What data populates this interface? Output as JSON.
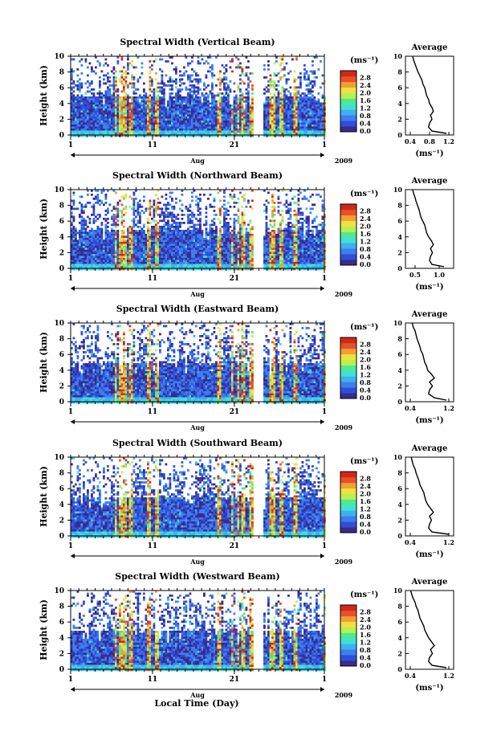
{
  "figure": {
    "xlabel": "Local Time (Day)",
    "month_label": "Aug",
    "year_label": "2009"
  },
  "colorbar": {
    "unit_label": "(ms⁻¹)",
    "tick_labels": [
      "0.0",
      "0.4",
      "0.8",
      "1.2",
      "1.6",
      "2.0",
      "2.4",
      "2.8"
    ],
    "colors": [
      "#3a2a8c",
      "#2f4fd8",
      "#3d7ef0",
      "#3fb0f0",
      "#40e0d8",
      "#50e890",
      "#b8f050",
      "#f0e040",
      "#f0a030",
      "#e85028",
      "#d02818"
    ]
  },
  "chart_data": [
    {
      "type": "heatmap",
      "title": "Spectral Width (Vertical Beam)",
      "ylabel": "Height (km)",
      "xlabel": "",
      "x_tick_labels": [
        "1",
        "11",
        "21",
        "1"
      ],
      "x_range_days": [
        1,
        32
      ],
      "ylim": [
        0,
        10
      ],
      "y_ticks": [
        0,
        2,
        4,
        6,
        8,
        10
      ],
      "data_gap_days": [
        [
          23.2,
          24.4
        ]
      ],
      "profile": {
        "title": "Average",
        "xlabel": "(ms⁻¹)",
        "x_tick_labels": [
          "0.4",
          "0.8",
          "1.2"
        ],
        "xlim": [
          0.3,
          1.3
        ],
        "ylim": [
          0,
          10
        ],
        "height_km": [
          0.2,
          0.5,
          1.0,
          1.5,
          2.0,
          2.5,
          3.0,
          3.5,
          4.0,
          4.5,
          5.0,
          5.5,
          6.0,
          6.5,
          7.0,
          7.5,
          8.0,
          8.5,
          9.0,
          9.5,
          10.0
        ],
        "width_ms": [
          1.15,
          0.85,
          0.78,
          0.8,
          0.85,
          0.82,
          0.88,
          0.85,
          0.8,
          0.78,
          0.74,
          0.72,
          0.7,
          0.66,
          0.64,
          0.6,
          0.56,
          0.53,
          0.5,
          0.47,
          0.45
        ]
      }
    },
    {
      "type": "heatmap",
      "title": "Spectral Width (Northward Beam)",
      "ylabel": "Height (km)",
      "xlabel": "",
      "x_tick_labels": [
        "1",
        "11",
        "21",
        "1"
      ],
      "x_range_days": [
        1,
        32
      ],
      "ylim": [
        0,
        10
      ],
      "y_ticks": [
        0,
        2,
        4,
        6,
        8,
        10
      ],
      "data_gap_days": [
        [
          23.2,
          24.4
        ]
      ],
      "profile": {
        "title": "Average",
        "xlabel": "(ms⁻¹)",
        "x_tick_labels": [
          "0.5",
          "1.0"
        ],
        "xlim": [
          0.3,
          1.3
        ],
        "ylim": [
          0,
          10
        ],
        "height_km": [
          0.2,
          0.5,
          1.0,
          1.5,
          2.0,
          2.5,
          3.0,
          3.5,
          4.0,
          4.5,
          5.0,
          5.5,
          6.0,
          6.5,
          7.0,
          7.5,
          8.0,
          8.5,
          9.0,
          9.5,
          10.0
        ],
        "width_ms": [
          1.1,
          0.85,
          0.8,
          0.82,
          0.86,
          0.82,
          0.88,
          0.84,
          0.78,
          0.74,
          0.72,
          0.7,
          0.66,
          0.62,
          0.6,
          0.58,
          0.55,
          0.52,
          0.5,
          0.47,
          0.45
        ]
      }
    },
    {
      "type": "heatmap",
      "title": "Spectral Width (Eastward Beam)",
      "ylabel": "Height (km)",
      "xlabel": "",
      "x_tick_labels": [
        "1",
        "11",
        "21",
        "1"
      ],
      "x_range_days": [
        1,
        32
      ],
      "ylim": [
        0,
        10
      ],
      "y_ticks": [
        0,
        2,
        4,
        6,
        8,
        10
      ],
      "data_gap_days": [
        [
          23.2,
          24.4
        ]
      ],
      "profile": {
        "title": "Average",
        "xlabel": "(ms⁻¹)",
        "x_tick_labels": [
          "0.4",
          "1.2"
        ],
        "xlim": [
          0.3,
          1.3
        ],
        "ylim": [
          0,
          10
        ],
        "height_km": [
          0.2,
          0.5,
          1.0,
          1.5,
          2.0,
          2.5,
          3.0,
          3.5,
          4.0,
          4.5,
          5.0,
          5.5,
          6.0,
          6.5,
          7.0,
          7.5,
          8.0,
          8.5,
          9.0,
          9.5,
          10.0
        ],
        "width_ms": [
          1.15,
          0.9,
          0.78,
          0.8,
          0.86,
          0.8,
          0.9,
          0.84,
          0.76,
          0.74,
          0.7,
          0.68,
          0.66,
          0.62,
          0.6,
          0.57,
          0.54,
          0.52,
          0.5,
          0.46,
          0.44
        ]
      }
    },
    {
      "type": "heatmap",
      "title": "Spectral Width (Southward Beam)",
      "ylabel": "Height (km)",
      "xlabel": "",
      "x_tick_labels": [
        "1",
        "11",
        "21",
        "1"
      ],
      "x_range_days": [
        1,
        32
      ],
      "ylim": [
        0,
        10
      ],
      "y_ticks": [
        0,
        2,
        4,
        6,
        8,
        10
      ],
      "data_gap_days": [
        [
          23.2,
          24.4
        ]
      ],
      "profile": {
        "title": "Average",
        "xlabel": "(ms⁻¹)",
        "x_tick_labels": [
          "0.4",
          "1.2"
        ],
        "xlim": [
          0.3,
          1.3
        ],
        "ylim": [
          0,
          10
        ],
        "height_km": [
          0.2,
          0.5,
          1.0,
          1.5,
          2.0,
          2.5,
          3.0,
          3.5,
          4.0,
          4.5,
          5.0,
          5.5,
          6.0,
          6.5,
          7.0,
          7.5,
          8.0,
          8.5,
          9.0,
          9.5,
          10.0
        ],
        "width_ms": [
          1.2,
          0.85,
          0.78,
          0.8,
          0.84,
          0.8,
          0.88,
          0.82,
          0.76,
          0.72,
          0.7,
          0.68,
          0.64,
          0.6,
          0.58,
          0.55,
          0.52,
          0.5,
          0.46,
          0.44,
          0.42
        ]
      }
    },
    {
      "type": "heatmap",
      "title": "Spectral Width (Westward Beam)",
      "ylabel": "Height (km)",
      "xlabel": "",
      "x_tick_labels": [
        "1",
        "11",
        "21",
        "1"
      ],
      "x_range_days": [
        1,
        32
      ],
      "ylim": [
        0,
        10
      ],
      "y_ticks": [
        0,
        2,
        4,
        6,
        8,
        10
      ],
      "data_gap_days": [
        [
          23.2,
          24.4
        ]
      ],
      "profile": {
        "title": "Average",
        "xlabel": "(ms⁻¹)",
        "x_tick_labels": [
          "0.4",
          "1.2"
        ],
        "xlim": [
          0.3,
          1.3
        ],
        "ylim": [
          0,
          10
        ],
        "height_km": [
          0.2,
          0.5,
          1.0,
          1.5,
          2.0,
          2.5,
          3.0,
          3.5,
          4.0,
          4.5,
          5.0,
          5.5,
          6.0,
          6.5,
          7.0,
          7.5,
          8.0,
          8.5,
          9.0,
          9.5,
          10.0
        ],
        "width_ms": [
          1.15,
          0.85,
          0.78,
          0.8,
          0.86,
          0.82,
          0.9,
          0.84,
          0.78,
          0.74,
          0.7,
          0.68,
          0.64,
          0.6,
          0.58,
          0.56,
          0.52,
          0.5,
          0.46,
          0.43,
          0.41
        ]
      }
    }
  ]
}
